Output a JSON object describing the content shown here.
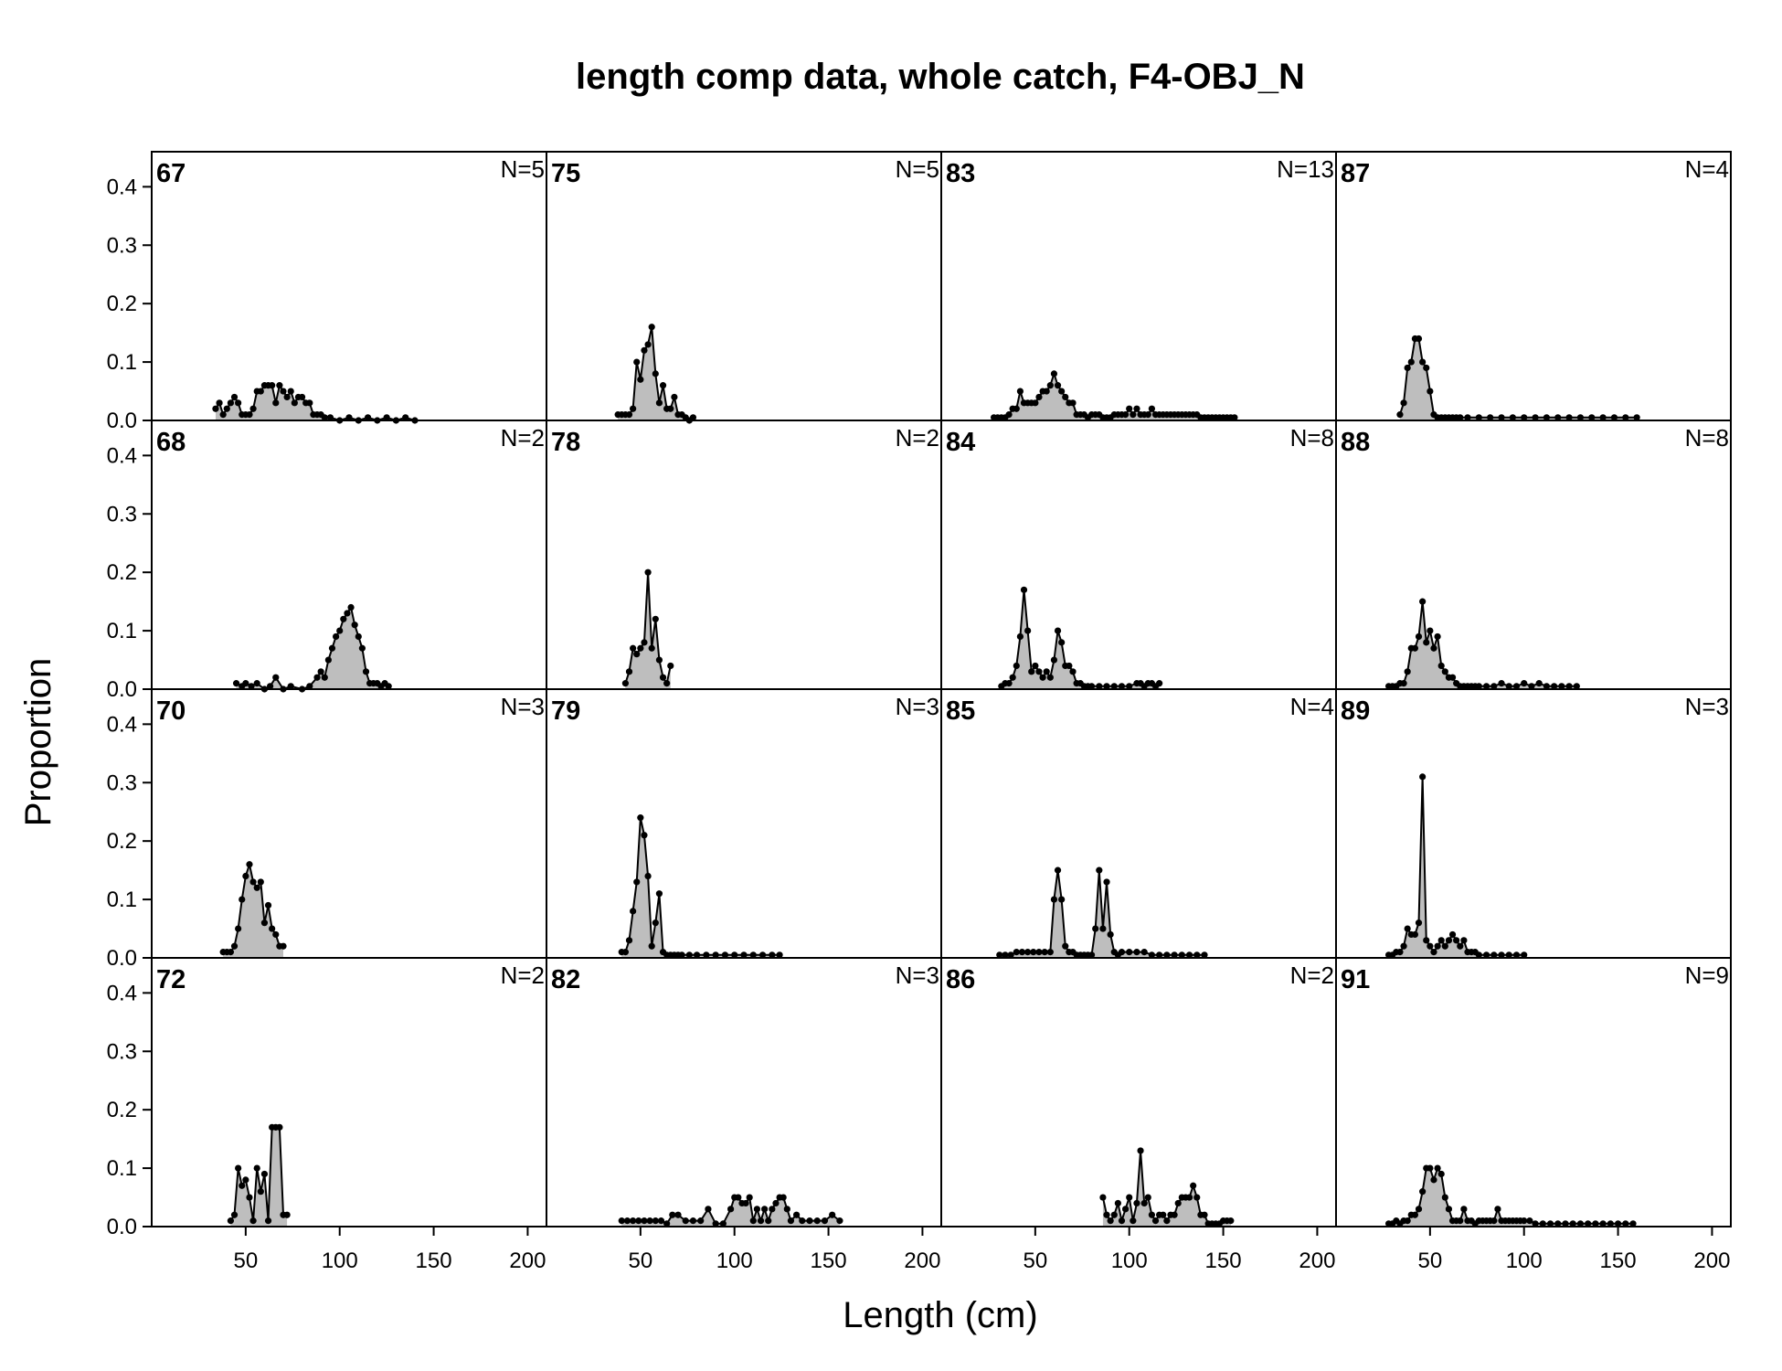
{
  "title": "length comp data, whole catch, F4-OBJ_N",
  "chart_data": {
    "type": "area",
    "title": "length comp data, whole catch, F4-OBJ_N",
    "xlabel": "Length (cm)",
    "ylabel": "Proportion",
    "xlim": [
      0,
      210
    ],
    "ylim": [
      0,
      0.46
    ],
    "x_ticks": [
      50,
      100,
      150,
      200
    ],
    "y_ticks": [
      0.0,
      0.1,
      0.2,
      0.3,
      0.4
    ],
    "x_tick_labels": [
      "50",
      "100",
      "150",
      "200"
    ],
    "y_tick_labels": [
      "0.0",
      "0.1",
      "0.2",
      "0.3",
      "0.4"
    ],
    "panel_layout": {
      "columns": 4,
      "rows": 4,
      "order": "column-major"
    },
    "fill_color": "#bebebe",
    "line_color": "#000000",
    "panels": [
      {
        "label": "67",
        "n_label": "N=5",
        "x": [
          34,
          36,
          38,
          40,
          42,
          44,
          46,
          48,
          50,
          52,
          54,
          56,
          58,
          60,
          62,
          64,
          66,
          68,
          70,
          72,
          74,
          76,
          78,
          80,
          82,
          84,
          86,
          88,
          90,
          92,
          95,
          100,
          105,
          110,
          115,
          120,
          125,
          130,
          135,
          140
        ],
        "y": [
          0.02,
          0.03,
          0.01,
          0.02,
          0.03,
          0.04,
          0.03,
          0.01,
          0.01,
          0.01,
          0.02,
          0.05,
          0.05,
          0.06,
          0.06,
          0.06,
          0.03,
          0.06,
          0.05,
          0.04,
          0.05,
          0.03,
          0.04,
          0.04,
          0.03,
          0.03,
          0.01,
          0.01,
          0.01,
          0.005,
          0.005,
          0,
          0.005,
          0,
          0.005,
          0,
          0.005,
          0,
          0.005,
          0
        ]
      },
      {
        "label": "68",
        "n_label": "N=2",
        "x": [
          45,
          48,
          50,
          53,
          56,
          60,
          63,
          66,
          70,
          74,
          80,
          84,
          88,
          90,
          92,
          94,
          96,
          98,
          100,
          102,
          104,
          106,
          108,
          110,
          112,
          114,
          116,
          118,
          120,
          122,
          124,
          126
        ],
        "y": [
          0.01,
          0.005,
          0.01,
          0.005,
          0.01,
          0,
          0.005,
          0.02,
          0,
          0.005,
          0,
          0.005,
          0.02,
          0.03,
          0.02,
          0.05,
          0.07,
          0.09,
          0.1,
          0.12,
          0.13,
          0.14,
          0.11,
          0.09,
          0.07,
          0.03,
          0.01,
          0.01,
          0.01,
          0.005,
          0.01,
          0.005
        ]
      },
      {
        "label": "70",
        "n_label": "N=3",
        "x": [
          38,
          40,
          42,
          44,
          46,
          48,
          50,
          52,
          54,
          56,
          58,
          60,
          62,
          64,
          66,
          68,
          70
        ],
        "y": [
          0.01,
          0.01,
          0.01,
          0.02,
          0.05,
          0.1,
          0.14,
          0.16,
          0.13,
          0.12,
          0.13,
          0.06,
          0.09,
          0.05,
          0.04,
          0.02,
          0.02
        ]
      },
      {
        "label": "72",
        "n_label": "N=2",
        "x": [
          42,
          44,
          46,
          48,
          50,
          52,
          54,
          56,
          58,
          60,
          62,
          64,
          66,
          68,
          70,
          72
        ],
        "y": [
          0.01,
          0.02,
          0.1,
          0.07,
          0.08,
          0.05,
          0.01,
          0.1,
          0.06,
          0.09,
          0.01,
          0.17,
          0.17,
          0.17,
          0.02,
          0.02
        ]
      },
      {
        "label": "75",
        "n_label": "N=5",
        "x": [
          38,
          40,
          42,
          44,
          46,
          48,
          50,
          52,
          54,
          56,
          58,
          60,
          62,
          64,
          66,
          68,
          70,
          72,
          74,
          76,
          78
        ],
        "y": [
          0.01,
          0.01,
          0.01,
          0.01,
          0.02,
          0.1,
          0.07,
          0.12,
          0.13,
          0.16,
          0.08,
          0.03,
          0.06,
          0.02,
          0.02,
          0.04,
          0.01,
          0.01,
          0.005,
          0,
          0.005
        ]
      },
      {
        "label": "78",
        "n_label": "N=2",
        "x": [
          42,
          44,
          46,
          48,
          50,
          52,
          54,
          56,
          58,
          60,
          62,
          64,
          66
        ],
        "y": [
          0.01,
          0.03,
          0.07,
          0.06,
          0.07,
          0.08,
          0.2,
          0.07,
          0.12,
          0.05,
          0.02,
          0.01,
          0.04
        ]
      },
      {
        "label": "79",
        "n_label": "N=3",
        "x": [
          40,
          42,
          44,
          46,
          48,
          50,
          52,
          54,
          56,
          58,
          60,
          62,
          64,
          66,
          68,
          70,
          72,
          76,
          80,
          85,
          90,
          95,
          100,
          105,
          110,
          115,
          120,
          124
        ],
        "y": [
          0.01,
          0.01,
          0.03,
          0.08,
          0.13,
          0.24,
          0.21,
          0.14,
          0.02,
          0.06,
          0.11,
          0.01,
          0.005,
          0.005,
          0.005,
          0.005,
          0.005,
          0.005,
          0.005,
          0.005,
          0.005,
          0.005,
          0.005,
          0.005,
          0.005,
          0.005,
          0.005,
          0.005
        ]
      },
      {
        "label": "82",
        "n_label": "N=3",
        "x": [
          40,
          43,
          46,
          49,
          52,
          55,
          58,
          61,
          64,
          67,
          70,
          74,
          78,
          82,
          86,
          90,
          94,
          98,
          100,
          102,
          104,
          106,
          108,
          110,
          112,
          114,
          116,
          118,
          120,
          122,
          124,
          126,
          128,
          130,
          133,
          136,
          140,
          144,
          148,
          152,
          156
        ],
        "y": [
          0.01,
          0.01,
          0.01,
          0.01,
          0.01,
          0.01,
          0.01,
          0.01,
          0.005,
          0.02,
          0.02,
          0.01,
          0.01,
          0.01,
          0.03,
          0.005,
          0.005,
          0.03,
          0.05,
          0.05,
          0.04,
          0.04,
          0.05,
          0.01,
          0.03,
          0.01,
          0.03,
          0.01,
          0.03,
          0.04,
          0.05,
          0.05,
          0.03,
          0.01,
          0.02,
          0.01,
          0.01,
          0.01,
          0.01,
          0.02,
          0.01
        ]
      },
      {
        "label": "83",
        "n_label": "N=13",
        "x": [
          28,
          30,
          32,
          34,
          36,
          38,
          40,
          42,
          44,
          46,
          48,
          50,
          52,
          54,
          56,
          58,
          60,
          62,
          64,
          66,
          68,
          70,
          72,
          74,
          76,
          78,
          80,
          82,
          84,
          86,
          88,
          90,
          92,
          94,
          96,
          98,
          100,
          102,
          104,
          106,
          108,
          110,
          112,
          114,
          116,
          118,
          120,
          122,
          124,
          126,
          128,
          130,
          132,
          134,
          136,
          138,
          140,
          142,
          144,
          146,
          148,
          150,
          152,
          154,
          156
        ],
        "y": [
          0.005,
          0.005,
          0.005,
          0.005,
          0.01,
          0.02,
          0.02,
          0.05,
          0.03,
          0.03,
          0.03,
          0.03,
          0.04,
          0.05,
          0.05,
          0.06,
          0.08,
          0.06,
          0.05,
          0.04,
          0.03,
          0.03,
          0.01,
          0.01,
          0.01,
          0.005,
          0.01,
          0.01,
          0.01,
          0.005,
          0.005,
          0.005,
          0.01,
          0.01,
          0.01,
          0.01,
          0.02,
          0.01,
          0.02,
          0.01,
          0.01,
          0.01,
          0.02,
          0.01,
          0.01,
          0.01,
          0.01,
          0.01,
          0.01,
          0.01,
          0.01,
          0.01,
          0.01,
          0.01,
          0.01,
          0.005,
          0.005,
          0.005,
          0.005,
          0.005,
          0.005,
          0.005,
          0.005,
          0.005,
          0.005
        ]
      },
      {
        "label": "84",
        "n_label": "N=8",
        "x": [
          32,
          34,
          36,
          38,
          40,
          42,
          44,
          46,
          48,
          50,
          52,
          54,
          56,
          58,
          60,
          62,
          64,
          66,
          68,
          70,
          72,
          74,
          76,
          78,
          80,
          84,
          88,
          92,
          96,
          100,
          104,
          106,
          108,
          110,
          112,
          114,
          116
        ],
        "y": [
          0.005,
          0.01,
          0.01,
          0.02,
          0.04,
          0.09,
          0.17,
          0.1,
          0.03,
          0.04,
          0.03,
          0.02,
          0.03,
          0.02,
          0.05,
          0.1,
          0.08,
          0.04,
          0.04,
          0.03,
          0.01,
          0.01,
          0.005,
          0.005,
          0.005,
          0.005,
          0.005,
          0.005,
          0.005,
          0.005,
          0.01,
          0.01,
          0.005,
          0.01,
          0.01,
          0.005,
          0.01
        ]
      },
      {
        "label": "85",
        "n_label": "N=4",
        "x": [
          31,
          34,
          37,
          40,
          43,
          46,
          49,
          52,
          55,
          58,
          60,
          62,
          64,
          66,
          68,
          70,
          72,
          74,
          76,
          78,
          80,
          82,
          84,
          86,
          88,
          90,
          92,
          94,
          96,
          100,
          104,
          108,
          112,
          116,
          120,
          124,
          128,
          132,
          136,
          140
        ],
        "y": [
          0.005,
          0.005,
          0.005,
          0.01,
          0.01,
          0.01,
          0.01,
          0.01,
          0.01,
          0.01,
          0.1,
          0.15,
          0.1,
          0.02,
          0.01,
          0.01,
          0.005,
          0.005,
          0.005,
          0.005,
          0.005,
          0.05,
          0.15,
          0.05,
          0.13,
          0.04,
          0.01,
          0.005,
          0.01,
          0.01,
          0.01,
          0.01,
          0.005,
          0.005,
          0.005,
          0.005,
          0.005,
          0.005,
          0.005,
          0.005
        ]
      },
      {
        "label": "86",
        "n_label": "N=2",
        "x": [
          86,
          88,
          90,
          92,
          94,
          96,
          98,
          100,
          102,
          104,
          106,
          108,
          110,
          112,
          114,
          116,
          118,
          120,
          122,
          124,
          126,
          128,
          130,
          132,
          134,
          136,
          138,
          140,
          142,
          144,
          146,
          148,
          150,
          152,
          154
        ],
        "y": [
          0.05,
          0.02,
          0.01,
          0.02,
          0.04,
          0.01,
          0.03,
          0.05,
          0.01,
          0.04,
          0.13,
          0.04,
          0.05,
          0.02,
          0.01,
          0.02,
          0.02,
          0.01,
          0.02,
          0.02,
          0.04,
          0.05,
          0.05,
          0.05,
          0.07,
          0.05,
          0.02,
          0.02,
          0.005,
          0.005,
          0.005,
          0.005,
          0.01,
          0.01,
          0.01
        ]
      },
      {
        "label": "87",
        "n_label": "N=4",
        "x": [
          34,
          36,
          38,
          40,
          42,
          44,
          46,
          48,
          50,
          52,
          54,
          56,
          58,
          60,
          62,
          64,
          66,
          70,
          76,
          82,
          88,
          94,
          100,
          106,
          112,
          118,
          124,
          130,
          136,
          142,
          148,
          154,
          160
        ],
        "y": [
          0.01,
          0.03,
          0.09,
          0.1,
          0.14,
          0.14,
          0.1,
          0.09,
          0.05,
          0.01,
          0.005,
          0.005,
          0.005,
          0.005,
          0.005,
          0.005,
          0.005,
          0.005,
          0.005,
          0.005,
          0.005,
          0.005,
          0.005,
          0.005,
          0.005,
          0.005,
          0.005,
          0.005,
          0.005,
          0.005,
          0.005,
          0.005,
          0.005
        ]
      },
      {
        "label": "88",
        "n_label": "N=8",
        "x": [
          28,
          30,
          32,
          34,
          36,
          38,
          40,
          42,
          44,
          46,
          48,
          50,
          52,
          54,
          56,
          58,
          60,
          62,
          64,
          66,
          68,
          70,
          72,
          74,
          76,
          80,
          84,
          88,
          92,
          96,
          100,
          104,
          108,
          112,
          116,
          120,
          124,
          128
        ],
        "y": [
          0.005,
          0.005,
          0.005,
          0.01,
          0.01,
          0.03,
          0.07,
          0.07,
          0.09,
          0.15,
          0.08,
          0.1,
          0.07,
          0.09,
          0.04,
          0.03,
          0.02,
          0.02,
          0.01,
          0.005,
          0.005,
          0.005,
          0.005,
          0.005,
          0.005,
          0.005,
          0.005,
          0.01,
          0.005,
          0.005,
          0.01,
          0.005,
          0.01,
          0.005,
          0.005,
          0.005,
          0.005,
          0.005
        ]
      },
      {
        "label": "89",
        "n_label": "N=3",
        "x": [
          28,
          30,
          32,
          34,
          36,
          38,
          40,
          42,
          44,
          46,
          48,
          50,
          52,
          54,
          56,
          58,
          60,
          62,
          64,
          66,
          68,
          70,
          72,
          74,
          76,
          80,
          84,
          88,
          92,
          96,
          100
        ],
        "y": [
          0.005,
          0.005,
          0.01,
          0.01,
          0.02,
          0.05,
          0.04,
          0.04,
          0.06,
          0.31,
          0.03,
          0.02,
          0.01,
          0.02,
          0.03,
          0.02,
          0.03,
          0.04,
          0.03,
          0.02,
          0.03,
          0.01,
          0.01,
          0.01,
          0.005,
          0.005,
          0.005,
          0.005,
          0.005,
          0.005,
          0.005
        ]
      },
      {
        "label": "91",
        "n_label": "N=9",
        "x": [
          28,
          30,
          32,
          34,
          36,
          38,
          40,
          42,
          44,
          46,
          48,
          50,
          52,
          54,
          56,
          58,
          60,
          62,
          64,
          66,
          68,
          70,
          72,
          74,
          76,
          78,
          80,
          82,
          84,
          86,
          88,
          90,
          92,
          94,
          96,
          98,
          100,
          103,
          106,
          110,
          114,
          118,
          122,
          126,
          130,
          134,
          138,
          142,
          146,
          150,
          154,
          158
        ],
        "y": [
          0.005,
          0.005,
          0.01,
          0.005,
          0.01,
          0.01,
          0.02,
          0.02,
          0.03,
          0.06,
          0.1,
          0.1,
          0.08,
          0.1,
          0.09,
          0.05,
          0.03,
          0.01,
          0.01,
          0.01,
          0.03,
          0.01,
          0.01,
          0.005,
          0.01,
          0.01,
          0.01,
          0.01,
          0.01,
          0.03,
          0.01,
          0.01,
          0.01,
          0.01,
          0.01,
          0.01,
          0.01,
          0.01,
          0.005,
          0.005,
          0.005,
          0.005,
          0.005,
          0.005,
          0.005,
          0.005,
          0.005,
          0.005,
          0.005,
          0.005,
          0.005,
          0.005
        ]
      }
    ]
  }
}
